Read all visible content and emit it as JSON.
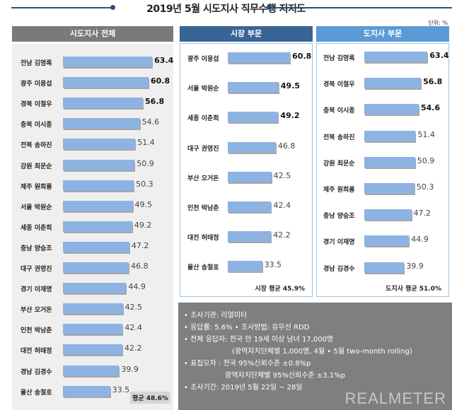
{
  "title": "2019년 5월 시도지사 직무수행 지지도",
  "unit": "단위: %",
  "colors": {
    "bar": "#8db3e2",
    "header_all": "#7a7a7a",
    "header_mayor": "#3a6496",
    "header_governor": "#5b9bd5"
  },
  "chart_data": [
    {
      "type": "bar",
      "orientation": "horizontal",
      "title": "시도지사 전체",
      "categories": [
        "전남 김영록",
        "광주 이용섭",
        "경북 이철우",
        "충북 이시종",
        "전북 송하진",
        "강원 최문순",
        "제주 원희룡",
        "서울 박원순",
        "세종 이춘희",
        "충남 양승조",
        "대구 권영진",
        "경기 이재명",
        "부산 오거돈",
        "인천 박남춘",
        "대전 허태정",
        "경남 김경수",
        "울산 송철호"
      ],
      "values": [
        63.4,
        60.8,
        56.8,
        54.6,
        51.4,
        50.9,
        50.3,
        49.5,
        49.2,
        47.2,
        46.8,
        44.9,
        42.5,
        42.4,
        42.2,
        39.9,
        33.5
      ],
      "average": "평균 48.6%"
    },
    {
      "type": "bar",
      "orientation": "horizontal",
      "title": "시장 부문",
      "categories": [
        "광주 이용섭",
        "서울 박원순",
        "세종 이춘희",
        "대구 권영진",
        "부산 오거돈",
        "인천 박남춘",
        "대전 허태정",
        "울산 송철호"
      ],
      "values": [
        60.8,
        49.5,
        49.2,
        46.8,
        42.5,
        42.4,
        42.2,
        33.5
      ],
      "average": "시장 평균 45.9%"
    },
    {
      "type": "bar",
      "orientation": "horizontal",
      "title": "도지사 부문",
      "categories": [
        "전남 김영록",
        "경북 이철우",
        "충북 이시종",
        "전북 송하진",
        "강원 최문순",
        "제주 원희룡",
        "충남 양승조",
        "경기 이재명",
        "경남 김경수"
      ],
      "values": [
        63.4,
        56.8,
        54.6,
        51.4,
        50.9,
        50.3,
        47.2,
        44.9,
        39.9
      ],
      "average": "도지사 평균 51.0%"
    }
  ],
  "notes": [
    "• 조사기관: 리얼미터",
    "• 응답률: 5.6% • 조사방법: 유무선 RDD",
    "• 전체 응답자: 전국 만 19세 이상 남녀 17,000명",
    "(광역자치단체별 1,000명, 4월 • 5월 two-month rolling)",
    "• 표집오차 : 전국 95%신뢰수준 ±0.8%p",
    "광역자치단체별 95%신뢰수준 ±3.1%p",
    "• 조사기간: 2019년 5월 22일 ~ 28일"
  ],
  "logo": "REALMETER"
}
